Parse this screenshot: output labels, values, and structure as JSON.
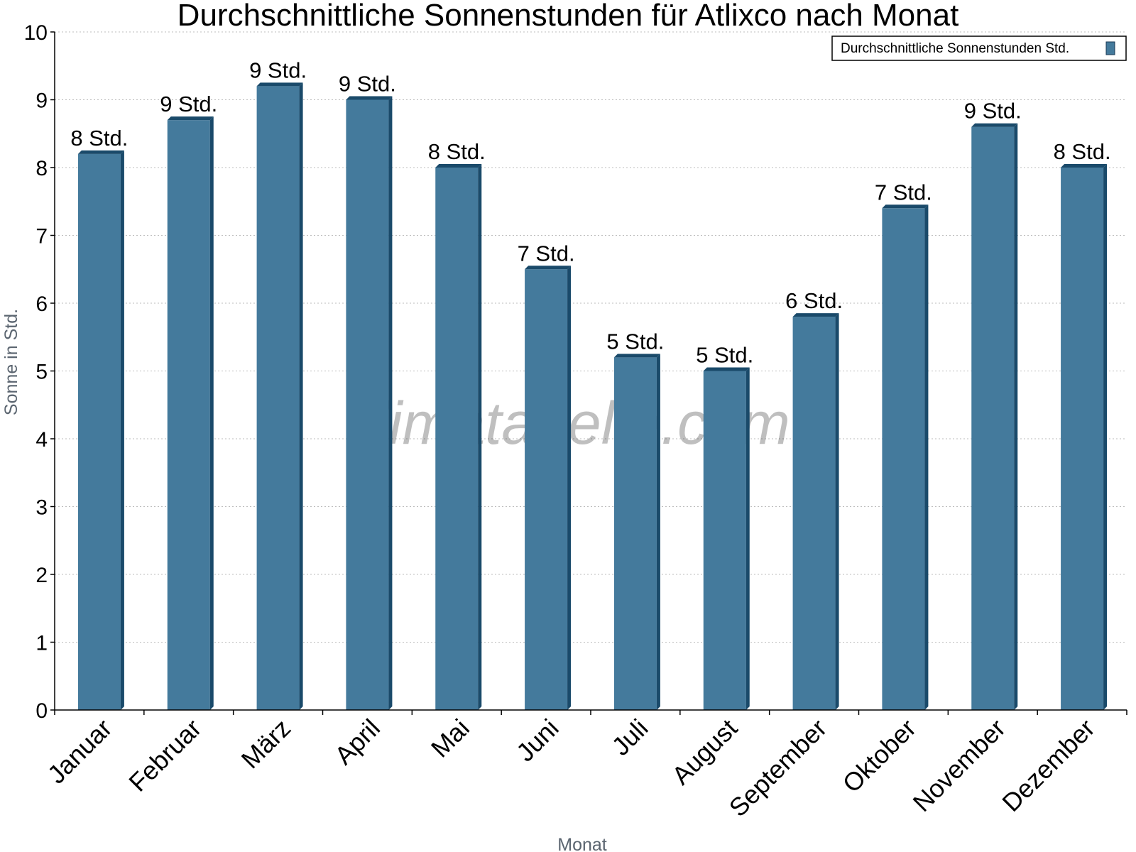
{
  "chart_data": {
    "type": "bar",
    "title": "Durchschnittliche Sonnenstunden für Atlixco nach Monat",
    "xlabel": "Monat",
    "ylabel": "Sonne in Std.",
    "ylim": [
      0,
      10
    ],
    "yticks": [
      "0",
      "1",
      "2",
      "3",
      "4",
      "5",
      "6",
      "7",
      "8",
      "9",
      "10"
    ],
    "grid": true,
    "legend_position": "top-right",
    "categories": [
      "Januar",
      "Februar",
      "März",
      "April",
      "Mai",
      "Juni",
      "Juli",
      "August",
      "September",
      "Oktober",
      "November",
      "Dezember"
    ],
    "series": [
      {
        "name": "Durchschnittliche Sonnenstunden Std.",
        "values": [
          8.2,
          8.7,
          9.2,
          9.0,
          8.0,
          6.5,
          5.2,
          5.0,
          5.8,
          7.4,
          8.6,
          8.0
        ],
        "labels": [
          "8 Std.",
          "9 Std.",
          "9 Std.",
          "9 Std.",
          "8 Std.",
          "7 Std.",
          "5 Std.",
          "5 Std.",
          "6 Std.",
          "7 Std.",
          "9 Std.",
          "8 Std."
        ],
        "color": "#447a9c",
        "side_color": "#1a4a6a"
      }
    ],
    "watermark": "klimatabelle.com"
  }
}
